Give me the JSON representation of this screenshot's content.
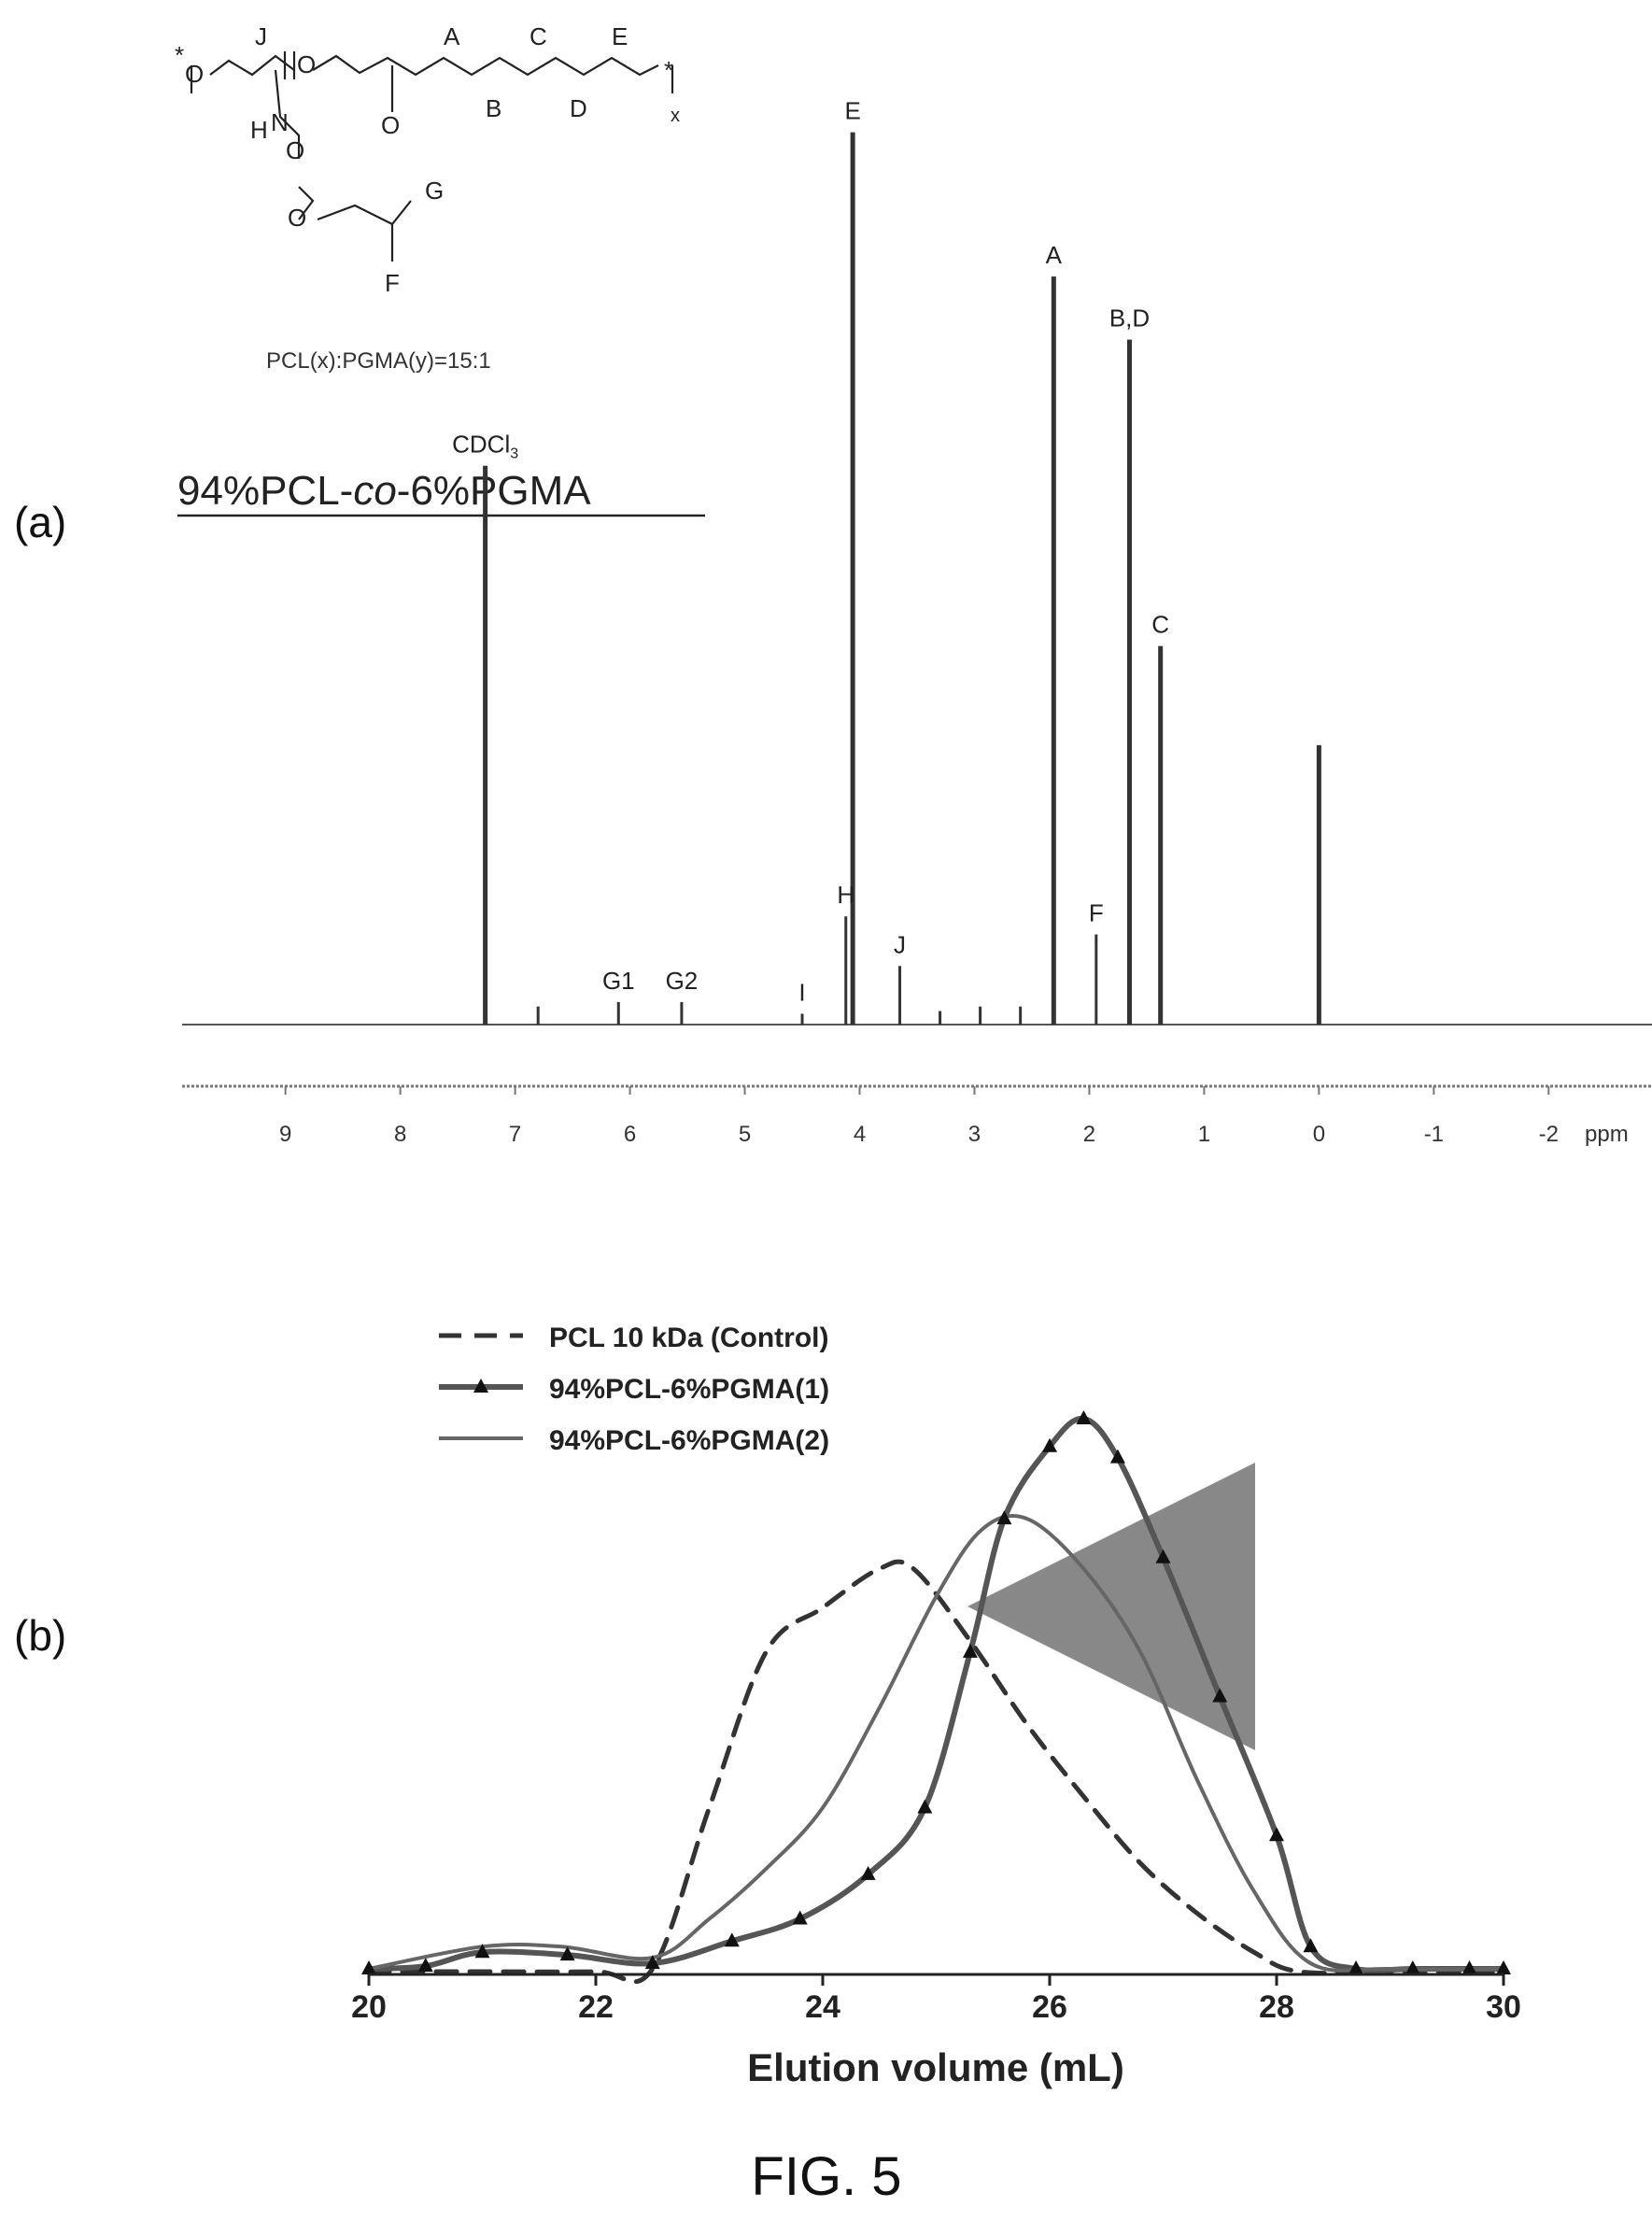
{
  "panel_a": {
    "panel_label": "(a)",
    "sample_name": "94%PCL-co-6%PGMA",
    "sample_name_parts": {
      "prefix": "94%PCL-",
      "italic": "co",
      "suffix": "-6%PGMA"
    },
    "structure": {
      "ratio_text": "PCL(x):PGMA(y)=15:1",
      "atom_labels": [
        "J",
        "A",
        "C",
        "E",
        "B",
        "D",
        "H",
        "G",
        "F",
        "O",
        "O",
        "O",
        "O",
        "O",
        "N",
        "x",
        "*",
        "*"
      ]
    }
  },
  "panel_b": {
    "panel_label": "(b)"
  },
  "figure_caption": "FIG. 5",
  "chart_data": [
    {
      "type": "line",
      "subtype": "nmr_spectrum",
      "xlabel": "ppm",
      "x_reversed": true,
      "xlim": [
        9.9,
        -2.9
      ],
      "x_ticks": [
        "9",
        "8",
        "7",
        "6",
        "5",
        "4",
        "3",
        "2",
        "1",
        "0",
        "-1",
        "-2"
      ],
      "grid": false,
      "legend": "none",
      "peaks": [
        {
          "label": "CDCl3",
          "shift": 7.26,
          "height": 0.62
        },
        {
          "label": "",
          "shift": 6.8,
          "height": 0.02
        },
        {
          "label": "G1",
          "shift": 6.1,
          "height": 0.025
        },
        {
          "label": "G2",
          "shift": 5.55,
          "height": 0.025
        },
        {
          "label": "I",
          "shift": 4.5,
          "height": 0.012
        },
        {
          "label": "H",
          "shift": 4.12,
          "height": 0.12
        },
        {
          "label": "E",
          "shift": 4.06,
          "height": 0.99
        },
        {
          "label": "J",
          "shift": 3.65,
          "height": 0.065
        },
        {
          "label": "",
          "shift": 3.3,
          "height": 0.015
        },
        {
          "label": "",
          "shift": 2.95,
          "height": 0.02
        },
        {
          "label": "",
          "shift": 2.6,
          "height": 0.02
        },
        {
          "label": "A",
          "shift": 2.31,
          "height": 0.83
        },
        {
          "label": "F",
          "shift": 1.94,
          "height": 0.1
        },
        {
          "label": "B,D",
          "shift": 1.65,
          "height": 0.76
        },
        {
          "label": "C",
          "shift": 1.38,
          "height": 0.42
        },
        {
          "label": "",
          "shift": 0.0,
          "height": 0.31
        }
      ]
    },
    {
      "type": "line",
      "subtype": "gpc_chromatogram",
      "xlabel": "Elution volume (mL)",
      "ylabel": "",
      "xlim": [
        20,
        30
      ],
      "x_ticks": [
        "20",
        "22",
        "24",
        "26",
        "28",
        "30"
      ],
      "ylim": [
        0,
        1
      ],
      "grid": false,
      "legend": "top-left",
      "annotations": [
        "arrow pointing left between peaks at ~26 mL"
      ],
      "series": [
        {
          "name": "PCL 10 kDa (Control)",
          "style": "dashed",
          "x": [
            20,
            21,
            22,
            22.5,
            23,
            23.5,
            24,
            24.5,
            24.8,
            25.3,
            25.8,
            26.3,
            26.8,
            27.3,
            27.8,
            28.2,
            29,
            30
          ],
          "y": [
            0.005,
            0.005,
            0.005,
            0.01,
            0.3,
            0.58,
            0.66,
            0.73,
            0.73,
            0.6,
            0.45,
            0.32,
            0.2,
            0.11,
            0.04,
            0.005,
            0.005,
            0.005
          ]
        },
        {
          "name": "94%PCL-6%PGMA(1)",
          "style": "solid-triangles",
          "x": [
            20,
            20.5,
            21,
            21.75,
            22.5,
            23.2,
            23.8,
            24.4,
            24.9,
            25.3,
            25.6,
            26,
            26.3,
            26.6,
            27,
            27.5,
            28,
            28.3,
            28.7,
            29.2,
            29.7,
            30
          ],
          "y": [
            0.01,
            0.015,
            0.04,
            0.035,
            0.02,
            0.06,
            0.1,
            0.18,
            0.3,
            0.58,
            0.82,
            0.95,
            1.0,
            0.93,
            0.75,
            0.5,
            0.25,
            0.05,
            0.01,
            0.01,
            0.01,
            0.01
          ]
        },
        {
          "name": "94%PCL-6%PGMA(2)",
          "style": "solid",
          "x": [
            20,
            21,
            21.7,
            22.5,
            23,
            23.5,
            24,
            24.5,
            25,
            25.4,
            25.8,
            26.3,
            26.8,
            27.3,
            27.8,
            28.3,
            29,
            30
          ],
          "y": [
            0.01,
            0.05,
            0.05,
            0.03,
            0.1,
            0.19,
            0.3,
            0.48,
            0.68,
            0.8,
            0.82,
            0.73,
            0.58,
            0.35,
            0.15,
            0.02,
            0.01,
            0.01
          ]
        }
      ]
    }
  ]
}
